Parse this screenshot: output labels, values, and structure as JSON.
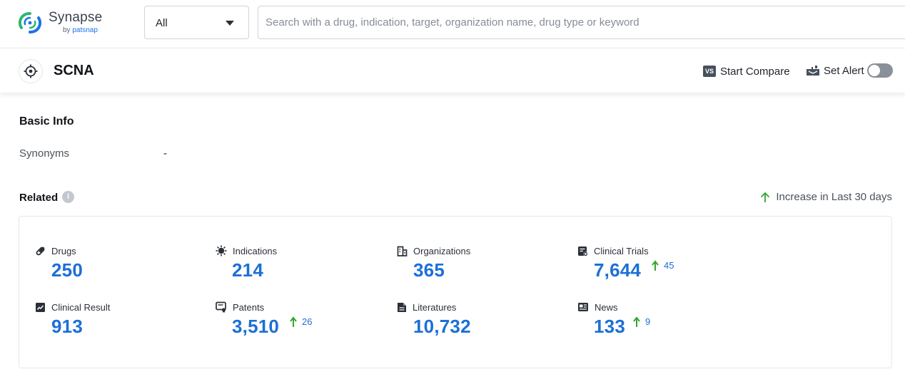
{
  "brand": {
    "name": "Synapse",
    "by_prefix": "by",
    "by_brand": "patsnap"
  },
  "search": {
    "type_value": "All",
    "placeholder": "Search with a drug, indication, target, organization name, drug type or keyword"
  },
  "entity": {
    "title": "SCNA",
    "compare_badge": "VS",
    "compare_label": "Start Compare",
    "alert_label": "Set Alert"
  },
  "basic_info": {
    "title": "Basic Info",
    "synonyms_label": "Synonyms",
    "synonyms_value": "-"
  },
  "related": {
    "title": "Related",
    "info_glyph": "i",
    "increase_note": "Increase in Last 30 days",
    "stats": [
      {
        "name": "Drugs",
        "value": "250",
        "icon": "pill-icon"
      },
      {
        "name": "Indications",
        "value": "214",
        "icon": "virus-icon"
      },
      {
        "name": "Organizations",
        "value": "365",
        "icon": "building-icon"
      },
      {
        "name": "Clinical Trials",
        "value": "7,644",
        "delta": "45",
        "icon": "trial-doc-icon"
      },
      {
        "name": "Clinical Result",
        "value": "913",
        "icon": "result-chart-icon"
      },
      {
        "name": "Patents",
        "value": "3,510",
        "delta": "26",
        "icon": "patent-icon"
      },
      {
        "name": "Literatures",
        "value": "10,732",
        "icon": "document-icon"
      },
      {
        "name": "News",
        "value": "133",
        "delta": "9",
        "icon": "news-icon"
      }
    ]
  },
  "colors": {
    "accent": "#1c6fd6",
    "increase": "#2ea82e",
    "brand_green": "#2ab673",
    "brand_blue": "#1a73e8"
  }
}
